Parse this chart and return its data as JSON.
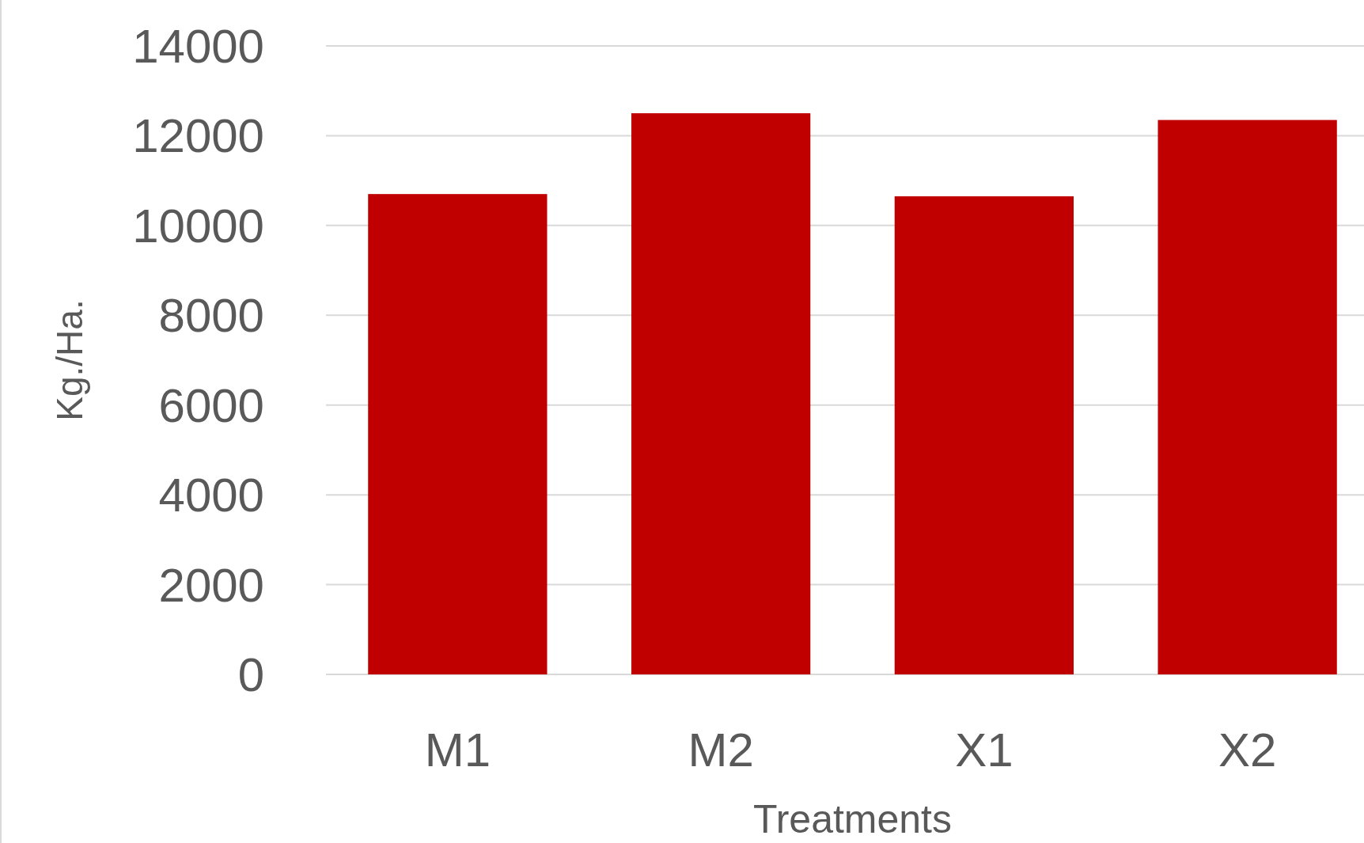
{
  "chart_data": {
    "type": "bar",
    "xlabel": "Treatments",
    "ylabel": "Kg./Ha.",
    "categories": [
      "M1",
      "M2",
      "X1",
      "X2"
    ],
    "values": [
      10700,
      12500,
      10650,
      12350
    ],
    "color": "#c00000",
    "ylim": [
      0,
      14000
    ],
    "yticks": [
      0,
      2000,
      4000,
      6000,
      8000,
      10000,
      12000,
      14000
    ],
    "grid": "y"
  }
}
